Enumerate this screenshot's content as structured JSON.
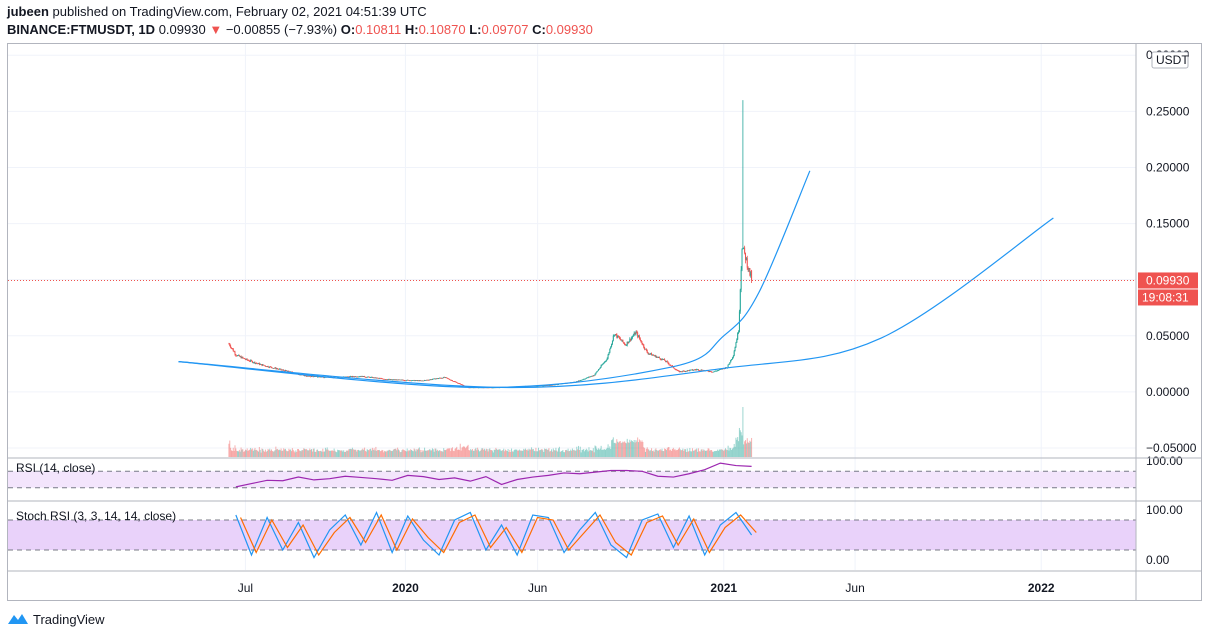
{
  "header": {
    "author": "jubeen",
    "published_text": "published on TradingView.com, February 02, 2021 04:51:39 UTC",
    "symbol": "BINANCE:FTMUSDT, 1D",
    "last_price": "0.09930",
    "change_arrow": "▼",
    "change": "−0.00855 (−7.93%)",
    "o_label": "O:",
    "o_value": "0.10811",
    "h_label": "H:",
    "h_value": "0.10870",
    "l_label": "L:",
    "l_value": "0.09707",
    "c_label": "C:",
    "c_value": "0.09930"
  },
  "colors": {
    "up": "#26a69a",
    "down": "#ef5350",
    "curve": "#2196f3",
    "rsi": "#9c27b0",
    "rsi_band": "#f3e5fc",
    "stoch_k": "#2196f3",
    "stoch_d": "#ff6d00",
    "stoch_band": "#e9d2fa"
  },
  "price_axis": {
    "currency": "USDT",
    "current_price_tag": "0.09930",
    "countdown_tag": "19:08:31"
  },
  "panes": {
    "rsi_label": "RSI (14, close)",
    "stoch_label": "Stoch RSI (3, 3, 14, 14, close)"
  },
  "footer": {
    "brand": "TradingView"
  },
  "chart_data": {
    "type": "candlestick",
    "symbol": "BINANCE:FTMUSDT",
    "interval": "1D",
    "price_ticks": [
      "0.30000",
      "0.25000",
      "0.20000",
      "0.15000",
      "0.10000",
      "0.05000",
      "0.00000",
      "−0.05000"
    ],
    "ylim": [
      -0.058,
      0.31
    ],
    "x_labels": [
      {
        "label": "Jul",
        "date": "2019-07-01"
      },
      {
        "label": "2020",
        "date": "2020-01-01"
      },
      {
        "label": "Jun",
        "date": "2020-06-01"
      },
      {
        "label": "2021",
        "date": "2021-01-01"
      },
      {
        "label": "Jun",
        "date": "2021-06-01"
      },
      {
        "label": "2022",
        "date": "2022-01-01"
      }
    ],
    "x_range": [
      "2018-10-01",
      "2022-04-20"
    ],
    "price_path": [
      {
        "date": "2019-06-12",
        "close": 0.043
      },
      {
        "date": "2019-06-20",
        "close": 0.033
      },
      {
        "date": "2019-07-01",
        "close": 0.029
      },
      {
        "date": "2019-07-20",
        "close": 0.024
      },
      {
        "date": "2019-08-15",
        "close": 0.019
      },
      {
        "date": "2019-09-10",
        "close": 0.014
      },
      {
        "date": "2019-10-10",
        "close": 0.013
      },
      {
        "date": "2019-11-10",
        "close": 0.014
      },
      {
        "date": "2019-12-15",
        "close": 0.011
      },
      {
        "date": "2020-01-20",
        "close": 0.01
      },
      {
        "date": "2020-02-15",
        "close": 0.013
      },
      {
        "date": "2020-03-13",
        "close": 0.004
      },
      {
        "date": "2020-04-15",
        "close": 0.004
      },
      {
        "date": "2020-05-15",
        "close": 0.005
      },
      {
        "date": "2020-06-15",
        "close": 0.006
      },
      {
        "date": "2020-07-15",
        "close": 0.009
      },
      {
        "date": "2020-08-05",
        "close": 0.015
      },
      {
        "date": "2020-08-20",
        "close": 0.03
      },
      {
        "date": "2020-08-28",
        "close": 0.052
      },
      {
        "date": "2020-09-10",
        "close": 0.042
      },
      {
        "date": "2020-09-22",
        "close": 0.053
      },
      {
        "date": "2020-10-05",
        "close": 0.035
      },
      {
        "date": "2020-10-25",
        "close": 0.028
      },
      {
        "date": "2020-11-10",
        "close": 0.018
      },
      {
        "date": "2020-12-01",
        "close": 0.02
      },
      {
        "date": "2020-12-20",
        "close": 0.018
      },
      {
        "date": "2021-01-05",
        "close": 0.022
      },
      {
        "date": "2021-01-12",
        "close": 0.033
      },
      {
        "date": "2021-01-18",
        "close": 0.055
      },
      {
        "date": "2021-01-22",
        "close": 0.13
      },
      {
        "date": "2021-01-26",
        "close": 0.12
      },
      {
        "date": "2021-02-02",
        "close": 0.0993
      }
    ],
    "spike_high": {
      "date": "2021-01-23",
      "high": 0.26
    },
    "last_ohlc": {
      "open": 0.10811,
      "high": 0.1087,
      "low": 0.09707,
      "close": 0.0993
    },
    "curves": [
      {
        "name": "",
        "points": [
          {
            "date": "2019-04-15",
            "y": 0.027
          },
          {
            "date": "2020-03-20",
            "y": 0.004
          },
          {
            "date": "2020-11-01",
            "y": 0.022
          },
          {
            "date": "2021-01-01",
            "y": 0.05
          },
          {
            "date": "2021-02-10",
            "y": 0.088
          },
          {
            "date": "2021-04-10",
            "y": 0.197
          }
        ]
      },
      {
        "name": "",
        "points": [
          {
            "date": "2019-04-15",
            "y": 0.027
          },
          {
            "date": "2020-04-20",
            "y": 0.004
          },
          {
            "date": "2021-01-01",
            "y": 0.021
          },
          {
            "date": "2021-07-01",
            "y": 0.048
          },
          {
            "date": "2022-01-15",
            "y": 0.155
          }
        ]
      }
    ],
    "rsi": {
      "ticks": [
        "100.00"
      ],
      "upper": 70,
      "lower": 30,
      "values": [
        32,
        40,
        48,
        47,
        56,
        49,
        52,
        58,
        55,
        52,
        48,
        60,
        57,
        50,
        54,
        46,
        57,
        38,
        50,
        56,
        60,
        66,
        64,
        68,
        72,
        72,
        70,
        58,
        56,
        64,
        74,
        90,
        84,
        82
      ]
    },
    "stoch_rsi": {
      "ticks": [
        "100.00",
        "0.00"
      ],
      "upper": 80,
      "lower": 20,
      "k": [
        90,
        10,
        85,
        20,
        75,
        5,
        60,
        90,
        30,
        95,
        15,
        88,
        40,
        10,
        80,
        95,
        20,
        70,
        10,
        90,
        85,
        15,
        60,
        95,
        30,
        5,
        80,
        92,
        25,
        88,
        10,
        70,
        95,
        50
      ],
      "d": [
        85,
        15,
        80,
        25,
        70,
        10,
        55,
        85,
        35,
        90,
        20,
        82,
        45,
        15,
        75,
        90,
        25,
        65,
        15,
        85,
        80,
        20,
        55,
        90,
        35,
        10,
        75,
        88,
        30,
        82,
        15,
        65,
        90,
        55
      ]
    }
  }
}
